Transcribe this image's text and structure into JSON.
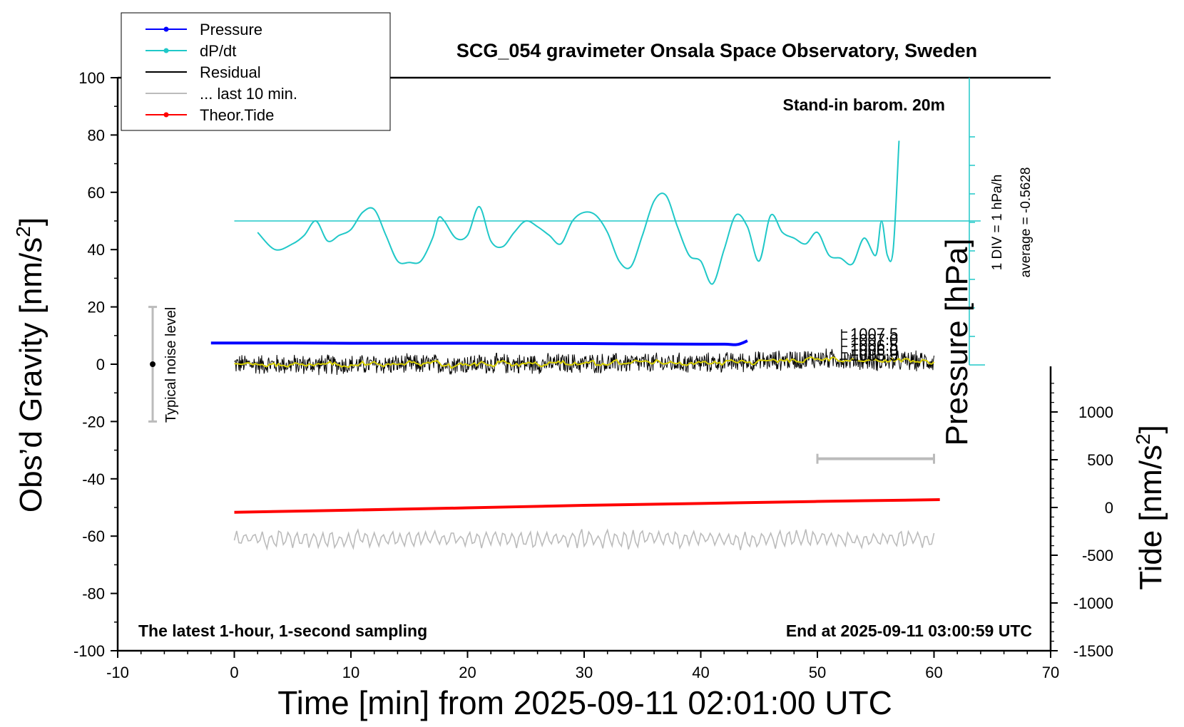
{
  "chart_data": {
    "type": "line",
    "title": "SCG_054 gravimeter Onsala Space Observatory, Sweden",
    "xlabel": "Time [min] from 2025-09-11 02:01:00 UTC",
    "ylabel_left": "Obs’d Gravity [nm/s2]",
    "ylabel_right": "Tide [nm/s2]",
    "ylabel_pressure": "Pressure [hPa]",
    "xlim": [
      -10,
      70
    ],
    "ylim_left": [
      -100,
      100
    ],
    "ylim_right": [
      -1500,
      1500
    ],
    "x_ticks": [
      -10,
      0,
      10,
      20,
      30,
      40,
      50,
      60,
      70
    ],
    "y_ticks_left": [
      -100,
      -80,
      -60,
      -40,
      -20,
      0,
      20,
      40,
      60,
      80,
      100
    ],
    "y_ticks_right": [
      -1500,
      -1000,
      -500,
      0,
      500,
      1000
    ],
    "legend": [
      {
        "label": "Pressure",
        "color": "#0000ff",
        "marker": true
      },
      {
        "label": "dP/dt",
        "color": "#20c8c8",
        "marker": true
      },
      {
        "label": "Residual",
        "color": "#000000",
        "marker": false
      },
      {
        "label": "... last 10 min.",
        "color": "#bbbbbb",
        "marker": false
      },
      {
        "label": "Theor.Tide",
        "color": "#ff0000",
        "marker": true
      }
    ],
    "annotations": {
      "barometer": "Stand-in barom. 20m",
      "sampling": "The latest 1-hour, 1-second sampling",
      "end_time": "End at 2025-09-11 03:00:59 UTC",
      "noise": "Typical noise level",
      "div": "1 DIV = 1 hPa/h",
      "average": "average = -0.5628",
      "pressure_ticks": [
        "1007.5",
        "1007.0",
        "1006.5",
        "1006.0",
        "1005.5"
      ]
    },
    "noise_bar": {
      "x": -7,
      "center": 0,
      "low": -20,
      "high": 20
    },
    "last10_bar": {
      "x_start": 50,
      "x_end": 60,
      "y": -33
    },
    "dpdt_reference_line": {
      "x_start": 0,
      "x_end": 64,
      "y": 50
    },
    "series": [
      {
        "name": "Pressure",
        "color": "#0000ff",
        "axis": "left",
        "x": [
          -2,
          5,
          10,
          20,
          30,
          35,
          40,
          42,
          43,
          43.5,
          44
        ],
        "y": [
          7.4,
          7.4,
          7.3,
          7.3,
          7.2,
          7.1,
          7.0,
          7.0,
          6.8,
          7.3,
          8.2
        ]
      },
      {
        "name": "dP/dt",
        "color": "#20c8c8",
        "axis": "left",
        "x": [
          2,
          3.5,
          5,
          6,
          7,
          8,
          9,
          10,
          11,
          12,
          13,
          14,
          15,
          16,
          17,
          17.5,
          18,
          19,
          20,
          21,
          22,
          23,
          24,
          25,
          26,
          27,
          28,
          29,
          30,
          31,
          32,
          33,
          34,
          35,
          36,
          37,
          38,
          39,
          40,
          41,
          42,
          43,
          44,
          45,
          46,
          47,
          48,
          49,
          50,
          51,
          52,
          53,
          54,
          55,
          55.5,
          56,
          56.5,
          57
        ],
        "y": [
          46,
          40,
          42,
          45,
          50,
          43,
          45,
          47,
          53,
          54,
          45,
          36,
          35.5,
          36,
          44,
          51,
          50,
          44,
          45,
          55,
          43,
          41,
          46,
          50,
          48,
          45,
          42,
          50,
          53,
          52,
          46,
          36,
          34,
          45,
          57,
          59,
          48,
          38,
          36,
          28,
          40,
          52,
          48,
          36,
          52,
          46,
          44,
          42,
          46,
          38,
          37,
          35,
          44,
          38,
          50,
          38,
          40,
          78
        ]
      },
      {
        "name": "Residual",
        "color": "#000000",
        "axis": "left",
        "x": [
          0,
          10,
          20,
          30,
          40,
          45,
          50,
          55,
          60
        ],
        "y": [
          0,
          -0.2,
          0.1,
          0.3,
          0.4,
          1.0,
          2.0,
          1.2,
          1.0
        ],
        "noise_amplitude": 4
      },
      {
        "name": "... last 10 min.",
        "color": "#bbbbbb",
        "axis": "left",
        "x": [
          0,
          60
        ],
        "y": [
          -61,
          -61
        ],
        "oscillation_amplitude": 3
      },
      {
        "name": "Theor.Tide",
        "color": "#ff0000",
        "axis": "right",
        "x": [
          0,
          10,
          20,
          30,
          40,
          50,
          60.5
        ],
        "y": [
          -50,
          -28,
          -4,
          22,
          42,
          63,
          82
        ]
      }
    ]
  }
}
